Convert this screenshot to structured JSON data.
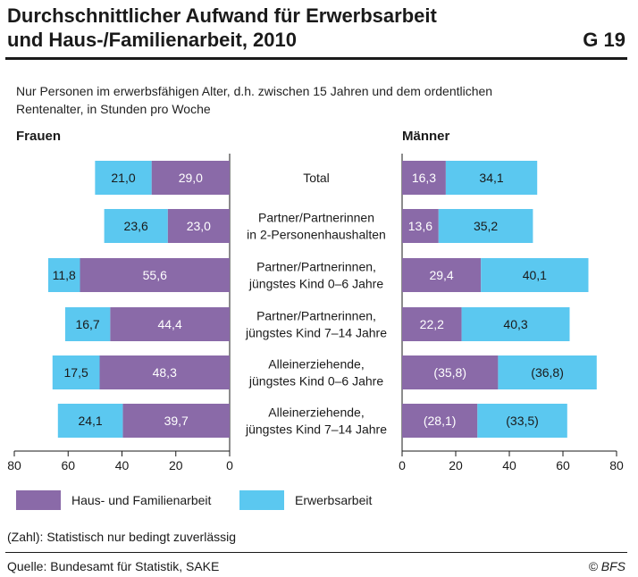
{
  "header": {
    "title_line1": "Durchschnittlicher Aufwand für Erwerbsarbeit",
    "title_line2": "und Haus-/Familienarbeit, 2010",
    "code": "G 19",
    "subtitle_line1": "Nur Personen im erwerbsfähigen Alter, d.h. zwischen 15 Jahren und dem ordentlichen",
    "subtitle_line2": "Rentenalter, in Stunden pro Woche"
  },
  "colors": {
    "haus": "#8a6aa8",
    "erwerb": "#5bc8f0",
    "axis": "#1a1a1a"
  },
  "chart_data": {
    "type": "bar",
    "orientation": "horizontal",
    "stacked": true,
    "categories": [
      [
        "Total"
      ],
      [
        "Partner/Partnerinnen",
        "in 2-Personenhaushalten"
      ],
      [
        "Partner/Partnerinnen,",
        "jüngstes Kind 0–6 Jahre"
      ],
      [
        "Partner/Partnerinnen,",
        "jüngstes Kind 7–14 Jahre"
      ],
      [
        "Alleinerziehende,",
        "jüngstes Kind 0–6 Jahre"
      ],
      [
        "Alleinerziehende,",
        "jüngstes Kind 7–14 Jahre"
      ]
    ],
    "panels": [
      {
        "name": "Frauen",
        "direction": "reversed",
        "xlim": [
          0,
          80
        ],
        "ticks": [
          "80",
          "60",
          "40",
          "20",
          "0"
        ],
        "haus": [
          29.0,
          23.0,
          55.6,
          44.4,
          48.3,
          39.7
        ],
        "erwerb": [
          21.0,
          23.6,
          11.8,
          16.7,
          17.5,
          24.1
        ],
        "haus_labels": [
          "29,0",
          "23,0",
          "55,6",
          "44,4",
          "48,3",
          "39,7"
        ],
        "erwerb_labels": [
          "21,0",
          "23,6",
          "11,8",
          "16,7",
          "17,5",
          "24,1"
        ]
      },
      {
        "name": "Männer",
        "direction": "normal",
        "xlim": [
          0,
          80
        ],
        "ticks": [
          "0",
          "20",
          "40",
          "60",
          "80"
        ],
        "haus": [
          16.3,
          13.6,
          29.4,
          22.2,
          35.8,
          28.1
        ],
        "erwerb": [
          34.1,
          35.2,
          40.1,
          40.3,
          36.8,
          33.5
        ],
        "haus_labels": [
          "16,3",
          "13,6",
          "29,4",
          "22,2",
          "(35,8)",
          "(28,1)"
        ],
        "erwerb_labels": [
          "34,1",
          "35,2",
          "40,1",
          "40,3",
          "(36,8)",
          "(33,5)"
        ]
      }
    ],
    "legend": [
      {
        "key": "haus",
        "label": "Haus- und Familienarbeit"
      },
      {
        "key": "erwerb",
        "label": "Erwerbsarbeit"
      }
    ],
    "legend_position": "bottom",
    "grid": false
  },
  "footer": {
    "note": "(Zahl): Statistisch nur bedingt zuverlässig",
    "source": "Quelle: Bundesamt für Statistik, SAKE",
    "copyright": "© BFS"
  }
}
